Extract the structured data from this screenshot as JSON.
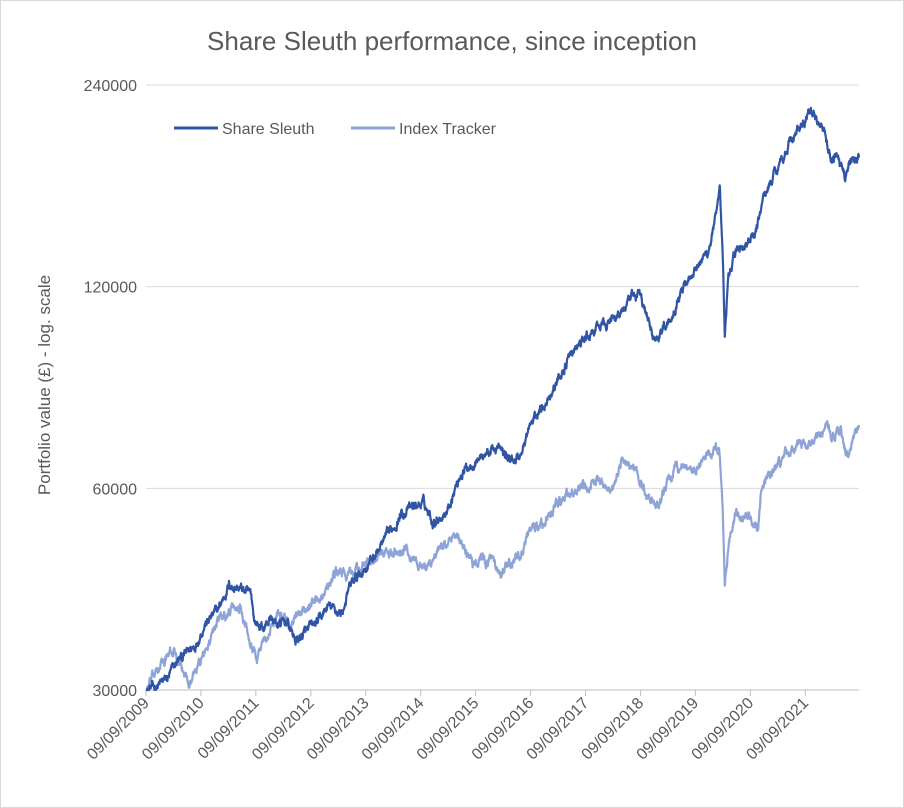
{
  "chart_data": {
    "type": "line",
    "title": "Share Sleuth performance, since inception",
    "xlabel": "",
    "ylabel": "Portfolio value (£) - log. scale",
    "y_scale": "log",
    "ylim": [
      30000,
      240000
    ],
    "y_ticks": [
      "30000",
      "60000",
      "120000",
      "240000"
    ],
    "x_ticks": [
      "09/09/2009",
      "09/09/2010",
      "09/09/2011",
      "09/09/2012",
      "09/09/2013",
      "09/09/2014",
      "09/09/2015",
      "09/09/2016",
      "09/09/2017",
      "09/09/2018",
      "09/09/2019",
      "09/09/2020",
      "09/09/2021"
    ],
    "xlim": [
      "2009-09-09",
      "2022-09-01"
    ],
    "grid": true,
    "legend": "top-left",
    "series": [
      {
        "name": "Share Sleuth",
        "color": "#2f55a4",
        "points": [
          [
            "2009-09-09",
            30000
          ],
          [
            "2009-12-01",
            30500
          ],
          [
            "2010-02-01",
            31200
          ],
          [
            "2010-04-01",
            33000
          ],
          [
            "2010-06-01",
            34000
          ],
          [
            "2010-08-01",
            35000
          ],
          [
            "2010-10-01",
            37500
          ],
          [
            "2011-01-01",
            39500
          ],
          [
            "2011-03-15",
            43000
          ],
          [
            "2011-06-01",
            42500
          ],
          [
            "2011-08-10",
            41500
          ],
          [
            "2011-09-01",
            38000
          ],
          [
            "2011-11-01",
            37000
          ],
          [
            "2011-12-15",
            38500
          ],
          [
            "2012-02-01",
            37500
          ],
          [
            "2012-04-01",
            38000
          ],
          [
            "2012-06-01",
            35500
          ],
          [
            "2012-08-01",
            36500
          ],
          [
            "2012-11-01",
            38000
          ],
          [
            "2013-01-01",
            40000
          ],
          [
            "2013-04-01",
            39000
          ],
          [
            "2013-06-01",
            43000
          ],
          [
            "2013-09-01",
            45500
          ],
          [
            "2013-12-01",
            48500
          ],
          [
            "2014-03-01",
            52000
          ],
          [
            "2014-05-01",
            55000
          ],
          [
            "2014-08-01",
            56500
          ],
          [
            "2014-10-01",
            57000
          ],
          [
            "2014-12-01",
            53500
          ],
          [
            "2015-03-01",
            55500
          ],
          [
            "2015-06-01",
            63000
          ],
          [
            "2015-09-01",
            66000
          ],
          [
            "2015-12-01",
            68000
          ],
          [
            "2016-02-01",
            69000
          ],
          [
            "2016-05-01",
            66000
          ],
          [
            "2016-07-01",
            67000
          ],
          [
            "2016-09-01",
            74000
          ],
          [
            "2016-12-01",
            80000
          ],
          [
            "2017-03-01",
            86000
          ],
          [
            "2017-06-01",
            95000
          ],
          [
            "2017-09-01",
            100000
          ],
          [
            "2017-12-01",
            104000
          ],
          [
            "2018-03-01",
            107000
          ],
          [
            "2018-06-01",
            112000
          ],
          [
            "2018-09-01",
            118000
          ],
          [
            "2018-11-01",
            106000
          ],
          [
            "2018-12-15",
            100000
          ],
          [
            "2019-02-01",
            104000
          ],
          [
            "2019-04-01",
            108000
          ],
          [
            "2019-06-01",
            118000
          ],
          [
            "2019-09-01",
            128000
          ],
          [
            "2019-12-01",
            135000
          ],
          [
            "2020-02-01",
            155000
          ],
          [
            "2020-02-20",
            165000
          ],
          [
            "2020-03-10",
            130000
          ],
          [
            "2020-03-23",
            100000
          ],
          [
            "2020-04-15",
            125000
          ],
          [
            "2020-06-01",
            135000
          ],
          [
            "2020-09-01",
            140000
          ],
          [
            "2020-10-15",
            144000
          ],
          [
            "2020-12-01",
            162000
          ],
          [
            "2021-03-01",
            180000
          ],
          [
            "2021-06-01",
            198000
          ],
          [
            "2021-09-01",
            210000
          ],
          [
            "2021-10-15",
            219000
          ],
          [
            "2021-12-01",
            214000
          ],
          [
            "2022-01-01",
            207000
          ],
          [
            "2022-02-01",
            195000
          ],
          [
            "2022-03-01",
            185000
          ],
          [
            "2022-04-01",
            188000
          ],
          [
            "2022-05-15",
            182000
          ],
          [
            "2022-06-01",
            175000
          ],
          [
            "2022-07-01",
            184000
          ],
          [
            "2022-09-01",
            187000
          ]
        ]
      },
      {
        "name": "Index Tracker",
        "color": "#8ea3d6",
        "points": [
          [
            "2009-09-09",
            30000
          ],
          [
            "2009-11-01",
            31500
          ],
          [
            "2010-01-01",
            33000
          ],
          [
            "2010-03-15",
            34500
          ],
          [
            "2010-05-01",
            32000
          ],
          [
            "2010-07-01",
            31000
          ],
          [
            "2010-09-01",
            33000
          ],
          [
            "2010-11-01",
            35000
          ],
          [
            "2011-01-01",
            38500
          ],
          [
            "2011-03-01",
            39000
          ],
          [
            "2011-06-01",
            40000
          ],
          [
            "2011-08-01",
            36000
          ],
          [
            "2011-09-15",
            33500
          ],
          [
            "2011-10-15",
            35000
          ],
          [
            "2011-12-01",
            36000
          ],
          [
            "2012-02-01",
            39500
          ],
          [
            "2012-05-01",
            37500
          ],
          [
            "2012-07-01",
            39000
          ],
          [
            "2012-09-01",
            40500
          ],
          [
            "2012-12-01",
            42000
          ],
          [
            "2013-03-01",
            45000
          ],
          [
            "2013-06-01",
            44500
          ],
          [
            "2013-09-01",
            46000
          ],
          [
            "2013-12-01",
            47500
          ],
          [
            "2014-03-01",
            48000
          ],
          [
            "2014-06-01",
            48500
          ],
          [
            "2014-08-01",
            47000
          ],
          [
            "2014-10-15",
            45500
          ],
          [
            "2015-02-01",
            49000
          ],
          [
            "2015-04-15",
            51000
          ],
          [
            "2015-06-01",
            49500
          ],
          [
            "2015-08-20",
            46500
          ],
          [
            "2015-10-01",
            47000
          ],
          [
            "2016-01-01",
            46500
          ],
          [
            "2016-02-15",
            44000
          ],
          [
            "2016-05-01",
            46500
          ],
          [
            "2016-07-01",
            47500
          ],
          [
            "2016-09-01",
            51500
          ],
          [
            "2016-12-01",
            53000
          ],
          [
            "2017-03-01",
            57000
          ],
          [
            "2017-06-01",
            59000
          ],
          [
            "2017-09-01",
            59500
          ],
          [
            "2017-12-01",
            62000
          ],
          [
            "2018-03-01",
            60000
          ],
          [
            "2018-05-15",
            66000
          ],
          [
            "2018-08-01",
            64000
          ],
          [
            "2018-10-01",
            60000
          ],
          [
            "2018-12-20",
            56000
          ],
          [
            "2019-03-01",
            61000
          ],
          [
            "2019-05-01",
            64000
          ],
          [
            "2019-07-01",
            65000
          ],
          [
            "2019-09-01",
            63000
          ],
          [
            "2019-12-01",
            67000
          ],
          [
            "2020-02-15",
            69000
          ],
          [
            "2020-03-10",
            55000
          ],
          [
            "2020-03-23",
            43000
          ],
          [
            "2020-04-30",
            51500
          ],
          [
            "2020-06-08",
            55500
          ],
          [
            "2020-07-15",
            54000
          ],
          [
            "2020-09-01",
            54500
          ],
          [
            "2020-10-30",
            52000
          ],
          [
            "2020-11-20",
            59000
          ],
          [
            "2021-01-01",
            62000
          ],
          [
            "2021-04-01",
            66000
          ],
          [
            "2021-06-01",
            68500
          ],
          [
            "2021-09-01",
            69500
          ],
          [
            "2021-11-01",
            70000
          ],
          [
            "2022-01-01",
            74000
          ],
          [
            "2022-03-01",
            72000
          ],
          [
            "2022-05-01",
            73000
          ],
          [
            "2022-06-20",
            68000
          ],
          [
            "2022-09-01",
            74000
          ]
        ]
      }
    ]
  }
}
